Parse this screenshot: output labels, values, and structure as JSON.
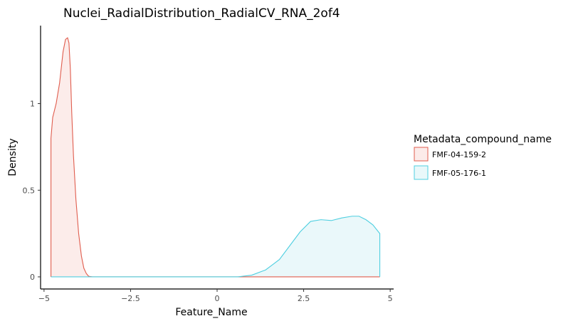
{
  "chart_data": {
    "type": "area",
    "chart_subtype": "density",
    "title": "Nuclei_RadialDistribution_RadialCV_RNA_2of4",
    "xlabel": "Feature_Name",
    "ylabel": "Density",
    "xlim": [
      -5.1,
      5.1
    ],
    "ylim": [
      -0.07,
      1.45
    ],
    "x_ticks": [
      -5,
      -2.5,
      0,
      2.5,
      5
    ],
    "x_tick_labels": [
      "−5",
      "−2.5",
      "0",
      "2.5",
      "5"
    ],
    "y_ticks": [
      0,
      0.5,
      1
    ],
    "y_tick_labels": [
      "0",
      "0.5",
      "1"
    ],
    "grid": false,
    "legend": {
      "title": "Metadata_compound_name",
      "position": "right"
    },
    "series": [
      {
        "name": "FMF-04-159-2",
        "line_color": "#E05D4E",
        "fill_color": "#FCEBE9",
        "x": [
          -4.8,
          -4.75,
          -4.65,
          -4.55,
          -4.45,
          -4.38,
          -4.32,
          -4.28,
          -4.24,
          -4.2,
          -4.15,
          -4.08,
          -4.0,
          -3.92,
          -3.85,
          -3.78,
          -3.72,
          -3.68,
          -3.6,
          -3.4,
          -3.0,
          0,
          4.7
        ],
        "y": [
          0.8,
          0.92,
          1.0,
          1.12,
          1.3,
          1.37,
          1.38,
          1.35,
          1.2,
          0.95,
          0.7,
          0.45,
          0.25,
          0.12,
          0.05,
          0.02,
          0.005,
          0.002,
          0,
          0,
          0,
          0,
          0
        ]
      },
      {
        "name": "FMF-05-176-1",
        "line_color": "#4FCFE0",
        "fill_color": "#E9F8FA",
        "x": [
          -4.8,
          0,
          0.6,
          1.0,
          1.4,
          1.8,
          2.1,
          2.4,
          2.7,
          3.0,
          3.3,
          3.6,
          3.9,
          4.1,
          4.3,
          4.5,
          4.7
        ],
        "y": [
          0,
          0,
          0,
          0.01,
          0.04,
          0.1,
          0.18,
          0.26,
          0.32,
          0.33,
          0.325,
          0.34,
          0.35,
          0.35,
          0.33,
          0.3,
          0.25
        ]
      }
    ]
  }
}
